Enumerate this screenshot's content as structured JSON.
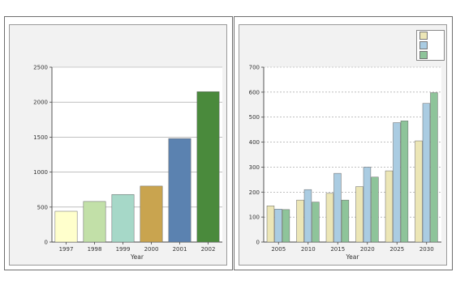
{
  "header": {
    "left_title": "",
    "right_title": ""
  },
  "source_note": "",
  "chart_data": [
    {
      "type": "bar",
      "title_line1": "",
      "title_line2": "",
      "xlabel": "Year",
      "ylabel": "",
      "categories": [
        "1997",
        "1998",
        "1999",
        "2000",
        "2001",
        "2002"
      ],
      "values": [
        440,
        580,
        680,
        800,
        1480,
        2150
      ],
      "colors": [
        "#ffffcc",
        "#c2e0a8",
        "#a6d8c8",
        "#c9a44f",
        "#5b82b0",
        "#4a8a3c"
      ],
      "ylim": [
        0,
        2500
      ],
      "yticks": [
        0,
        500,
        1000,
        1500,
        2000,
        2500
      ],
      "grid": true
    },
    {
      "type": "bar",
      "title_line1": "",
      "title_line2": "",
      "xlabel": "Year",
      "ylabel": "",
      "categories": [
        "2005",
        "2010",
        "2015",
        "2020",
        "2025",
        "2030"
      ],
      "series": [
        {
          "name": "",
          "values": [
            145,
            168,
            195,
            222,
            285,
            405
          ],
          "color": "#ece6b6"
        },
        {
          "name": "",
          "values": [
            132,
            210,
            275,
            300,
            478,
            555
          ],
          "color": "#aacce2"
        },
        {
          "name": "",
          "values": [
            130,
            160,
            168,
            260,
            485,
            598
          ],
          "color": "#8ec49a"
        }
      ],
      "ylim": [
        0,
        700
      ],
      "yticks": [
        0,
        100,
        200,
        300,
        400,
        500,
        600,
        700
      ],
      "legend_position": "top-right",
      "grid": true
    }
  ]
}
